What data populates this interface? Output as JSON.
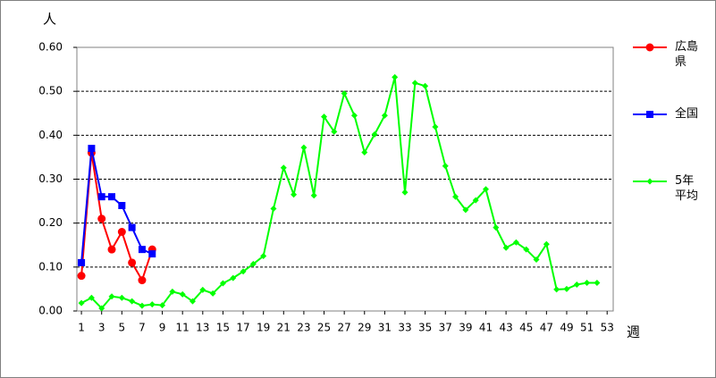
{
  "chart_data": {
    "type": "line",
    "y_label": "人",
    "x_label": "週",
    "x": [
      1,
      2,
      3,
      4,
      5,
      6,
      7,
      8,
      9,
      10,
      11,
      12,
      13,
      14,
      15,
      16,
      17,
      18,
      19,
      20,
      21,
      22,
      23,
      24,
      25,
      26,
      27,
      28,
      29,
      30,
      31,
      32,
      33,
      34,
      35,
      36,
      37,
      38,
      39,
      40,
      41,
      42,
      43,
      44,
      45,
      46,
      47,
      48,
      49,
      50,
      51,
      52
    ],
    "series": [
      {
        "name": "広島県",
        "color": "#ff0000",
        "marker": "circle",
        "values": [
          0.08,
          0.36,
          0.21,
          0.14,
          0.18,
          0.11,
          0.07,
          0.14,
          null,
          null,
          null,
          null,
          null,
          null,
          null,
          null,
          null,
          null,
          null,
          null,
          null,
          null,
          null,
          null,
          null,
          null,
          null,
          null,
          null,
          null,
          null,
          null,
          null,
          null,
          null,
          null,
          null,
          null,
          null,
          null,
          null,
          null,
          null,
          null,
          null,
          null,
          null,
          null,
          null,
          null,
          null,
          null
        ]
      },
      {
        "name": "全国",
        "color": "#0000ff",
        "marker": "square",
        "values": [
          0.11,
          0.37,
          0.26,
          0.26,
          0.24,
          0.19,
          0.14,
          0.13,
          null,
          null,
          null,
          null,
          null,
          null,
          null,
          null,
          null,
          null,
          null,
          null,
          null,
          null,
          null,
          null,
          null,
          null,
          null,
          null,
          null,
          null,
          null,
          null,
          null,
          null,
          null,
          null,
          null,
          null,
          null,
          null,
          null,
          null,
          null,
          null,
          null,
          null,
          null,
          null,
          null,
          null,
          null,
          null
        ]
      },
      {
        "name": "5年平均",
        "color": "#00ff00",
        "marker": "diamond",
        "values": [
          0.018,
          0.03,
          0.006,
          0.033,
          0.03,
          0.022,
          0.012,
          0.015,
          0.013,
          0.044,
          0.038,
          0.022,
          0.048,
          0.04,
          0.063,
          0.075,
          0.09,
          0.107,
          0.125,
          0.233,
          0.326,
          0.265,
          0.372,
          0.263,
          0.442,
          0.408,
          0.495,
          0.445,
          0.361,
          0.402,
          0.445,
          0.532,
          0.27,
          0.519,
          0.512,
          0.419,
          0.33,
          0.26,
          0.23,
          0.252,
          0.277,
          0.19,
          0.144,
          0.156,
          0.14,
          0.117,
          0.152,
          0.049,
          0.05,
          0.06,
          0.064,
          0.064
        ]
      }
    ],
    "xlim": [
      0.55,
      53.6
    ],
    "xticks": [
      1,
      3,
      5,
      7,
      9,
      11,
      13,
      15,
      17,
      19,
      21,
      23,
      25,
      27,
      29,
      31,
      33,
      35,
      37,
      39,
      41,
      43,
      45,
      47,
      49,
      51,
      53
    ],
    "ylim": [
      0,
      0.6
    ],
    "yticks": [
      {
        "value": 0,
        "label": "0.00"
      },
      {
        "value": 0.1,
        "label": "0.10"
      },
      {
        "value": 0.2,
        "label": "0.20"
      },
      {
        "value": 0.3,
        "label": "0.30"
      },
      {
        "value": 0.4,
        "label": "0.40"
      },
      {
        "value": 0.5,
        "label": "0.50"
      },
      {
        "value": 0.6,
        "label": "0.60"
      }
    ],
    "grid": true,
    "legend": "right"
  }
}
